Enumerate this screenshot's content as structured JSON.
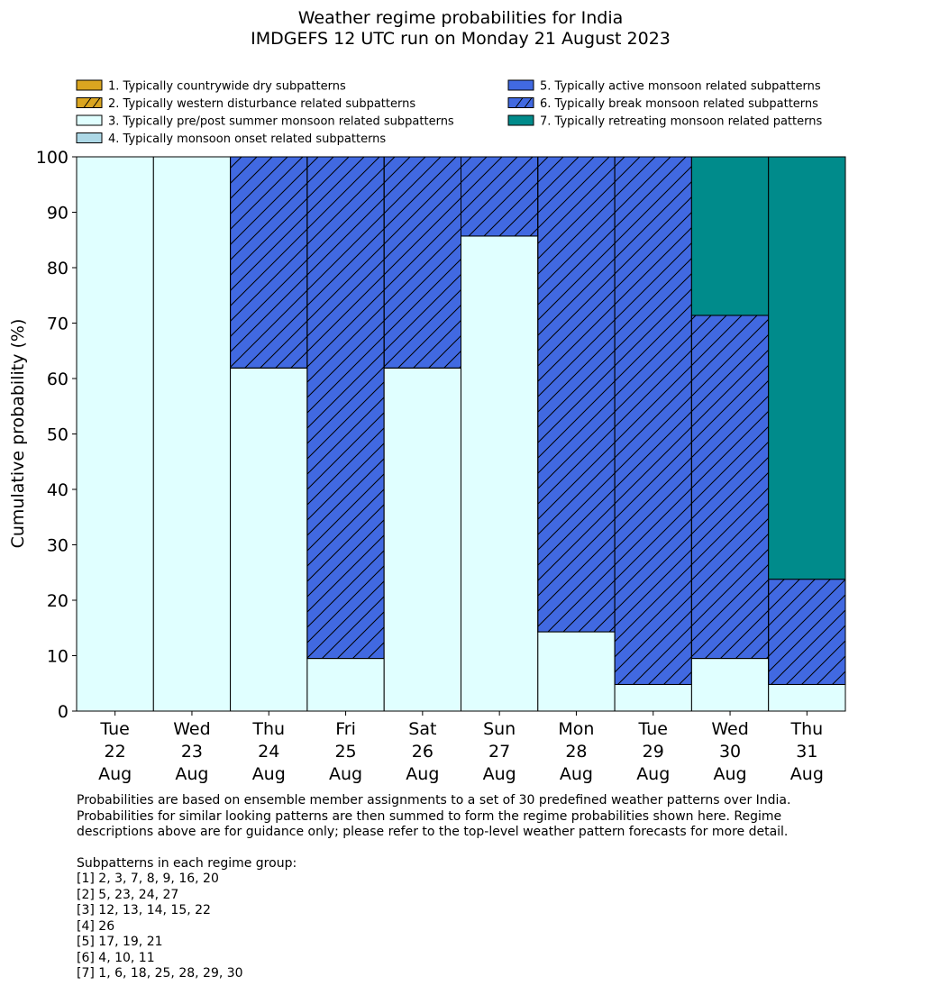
{
  "chart_data": {
    "type": "bar",
    "stacked": true,
    "title": "Weather regime probabilities for India",
    "subtitle": "IMDGEFS 12 UTC run on Monday 21 August 2023",
    "ylabel": "Cumulative probability (%)",
    "xlabel": "",
    "ylim": [
      0,
      100
    ],
    "yticks": [
      0,
      10,
      20,
      30,
      40,
      50,
      60,
      70,
      80,
      90,
      100
    ],
    "grid": false,
    "legend_placement": "top",
    "categories": [
      [
        "Tue",
        "22",
        "Aug"
      ],
      [
        "Wed",
        "23",
        "Aug"
      ],
      [
        "Thu",
        "24",
        "Aug"
      ],
      [
        "Fri",
        "25",
        "Aug"
      ],
      [
        "Sat",
        "26",
        "Aug"
      ],
      [
        "Sun",
        "27",
        "Aug"
      ],
      [
        "Mon",
        "28",
        "Aug"
      ],
      [
        "Tue",
        "29",
        "Aug"
      ],
      [
        "Wed",
        "30",
        "Aug"
      ],
      [
        "Thu",
        "31",
        "Aug"
      ]
    ],
    "series": [
      {
        "name": "1. Typically countrywide dry subpatterns",
        "color": "#DAA520",
        "hatch": false,
        "values": [
          0,
          0,
          0,
          0,
          0,
          0,
          0,
          0,
          0,
          0
        ]
      },
      {
        "name": "2. Typically western disturbance related subpatterns",
        "color": "#DAA520",
        "hatch": true,
        "values": [
          0,
          0,
          0,
          0,
          0,
          0,
          0,
          0,
          0,
          0
        ]
      },
      {
        "name": "3. Typically pre/post summer monsoon related subpatterns",
        "color": "#E0FFFF",
        "hatch": false,
        "values": [
          100,
          100,
          61.9,
          9.5,
          61.9,
          85.7,
          14.3,
          4.8,
          9.5,
          4.8
        ]
      },
      {
        "name": "4. Typically monsoon onset related subpatterns",
        "color": "#ADD8E6",
        "hatch": false,
        "values": [
          0,
          0,
          0,
          0,
          0,
          0,
          0,
          0,
          0,
          0
        ]
      },
      {
        "name": "5. Typically active monsoon related subpatterns",
        "color": "#4169E1",
        "hatch": false,
        "values": [
          0,
          0,
          0,
          0,
          0,
          0,
          0,
          0,
          0,
          0
        ]
      },
      {
        "name": "6. Typically break monsoon related subpatterns",
        "color": "#4169E1",
        "hatch": true,
        "values": [
          0,
          0,
          38.1,
          90.5,
          38.1,
          14.3,
          85.7,
          95.2,
          61.9,
          19.0
        ]
      },
      {
        "name": "7. Typically retreating monsoon related patterns",
        "color": "#008B8B",
        "hatch": false,
        "values": [
          0,
          0,
          0,
          0,
          0,
          0,
          0,
          0,
          28.6,
          76.2
        ]
      }
    ]
  },
  "notes": {
    "paragraph": "Probabilities are based on ensemble member assignments to a set of 30 predefined weather patterns over India.\nProbabilities for similar looking patterns are then summed to form the regime probabilities shown here. Regime\ndescriptions above are for guidance only; please refer to the top-level weather pattern forecasts for more detail.",
    "groups_heading": "Subpatterns in each regime group:",
    "groups": [
      "[1] 2, 3, 7, 8, 9, 16, 20",
      "[2] 5, 23, 24, 27",
      "[3] 12, 13, 14, 15, 22",
      "[4] 26",
      "[5] 17, 19, 21",
      "[6] 4, 10, 11",
      "[7] 1, 6, 18, 25, 28, 29, 30"
    ]
  }
}
